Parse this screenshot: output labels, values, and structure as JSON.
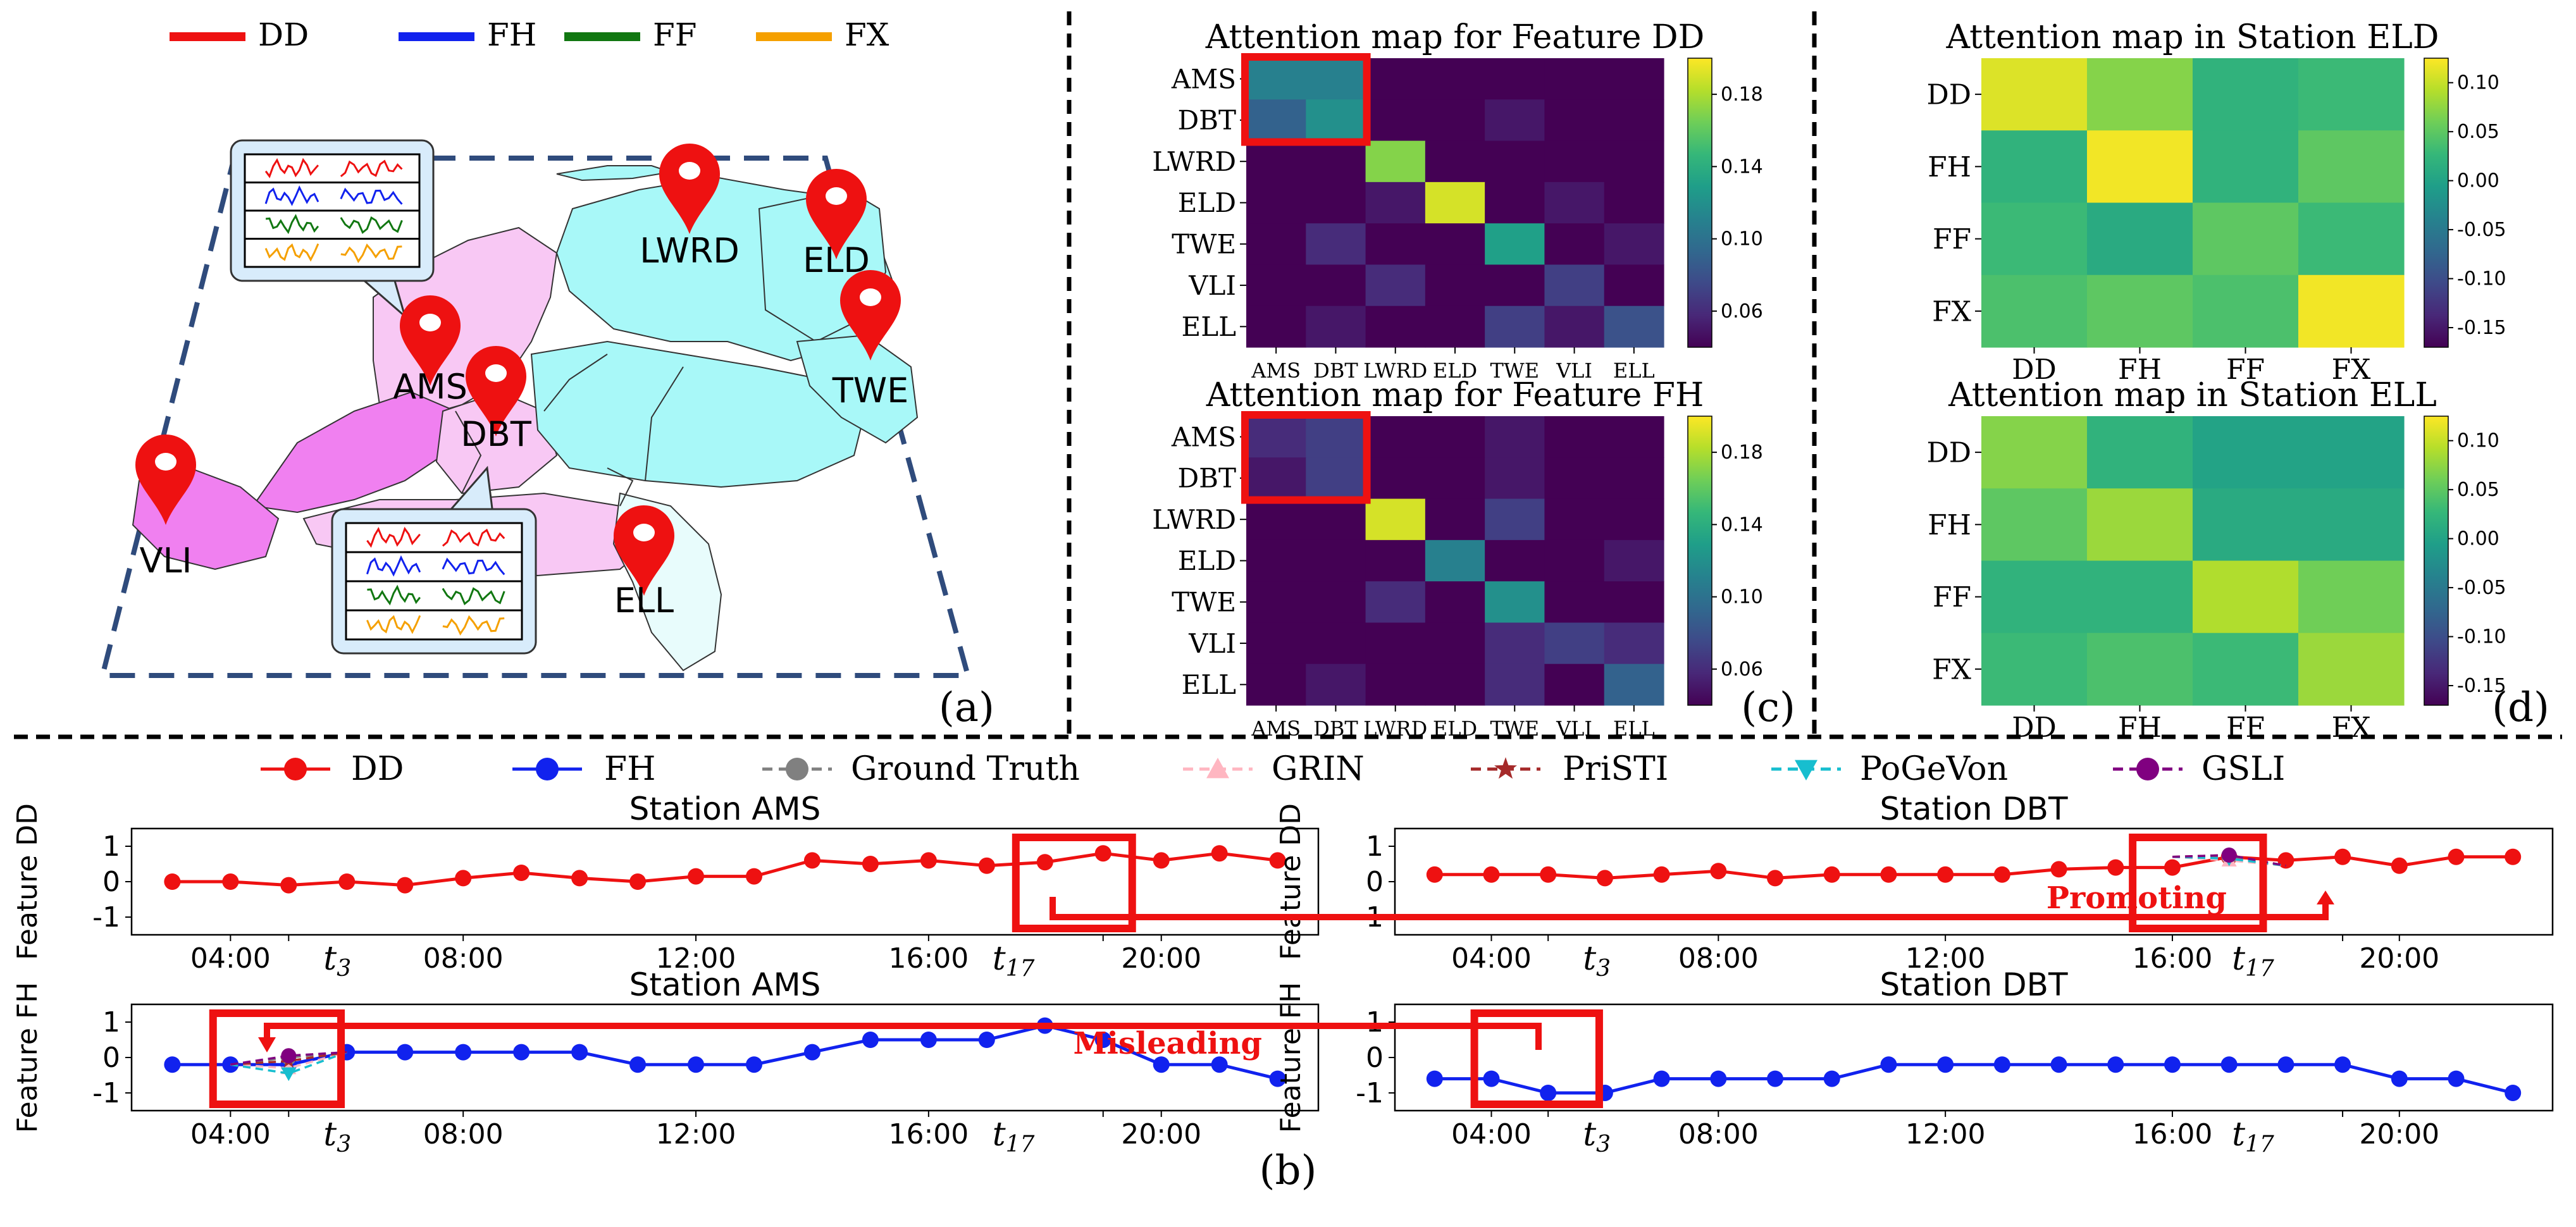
{
  "panel_labels": {
    "a": "(a)",
    "b": "(b)",
    "c": "(c)",
    "d": "(d)"
  },
  "features": [
    "DD",
    "FH",
    "FF",
    "FX"
  ],
  "feature_colors": {
    "DD": "#ee1111",
    "FH": "#1122ee",
    "FF": "#117711",
    "FX": "#f5a000"
  },
  "map": {
    "stations": [
      {
        "name": "AMS"
      },
      {
        "name": "DBT"
      },
      {
        "name": "LWRD"
      },
      {
        "name": "ELD"
      },
      {
        "name": "TWE"
      },
      {
        "name": "VLI"
      },
      {
        "name": "ELL"
      }
    ],
    "region_colors": {
      "west": "#f080f0",
      "light": "#f8c8f4",
      "north": "#a8f8f8",
      "east": "#e8fcfc"
    },
    "pin_color": "#ee1111"
  },
  "heat_c": {
    "stations": [
      "AMS",
      "DBT",
      "LWRD",
      "ELD",
      "TWE",
      "VLI",
      "ELL"
    ],
    "colorbar_ticks": [
      "0.06",
      "0.10",
      "0.14",
      "0.18"
    ],
    "maps": [
      {
        "title": "Attention map for Feature DD",
        "values": [
          [
            0.11,
            0.11,
            0.04,
            0.04,
            0.04,
            0.04,
            0.04
          ],
          [
            0.09,
            0.12,
            0.04,
            0.04,
            0.05,
            0.04,
            0.04
          ],
          [
            0.04,
            0.04,
            0.17,
            0.04,
            0.04,
            0.04,
            0.04
          ],
          [
            0.04,
            0.04,
            0.05,
            0.19,
            0.04,
            0.05,
            0.04
          ],
          [
            0.04,
            0.06,
            0.04,
            0.04,
            0.13,
            0.04,
            0.05
          ],
          [
            0.04,
            0.04,
            0.06,
            0.04,
            0.04,
            0.07,
            0.04
          ],
          [
            0.04,
            0.05,
            0.04,
            0.04,
            0.07,
            0.05,
            0.08
          ]
        ]
      },
      {
        "title": "Attention map for Feature FH",
        "values": [
          [
            0.06,
            0.07,
            0.04,
            0.04,
            0.05,
            0.04,
            0.04
          ],
          [
            0.05,
            0.07,
            0.04,
            0.04,
            0.05,
            0.04,
            0.04
          ],
          [
            0.04,
            0.04,
            0.19,
            0.04,
            0.07,
            0.04,
            0.04
          ],
          [
            0.04,
            0.04,
            0.04,
            0.11,
            0.04,
            0.04,
            0.05
          ],
          [
            0.04,
            0.04,
            0.06,
            0.04,
            0.12,
            0.04,
            0.04
          ],
          [
            0.04,
            0.04,
            0.04,
            0.04,
            0.06,
            0.07,
            0.06
          ],
          [
            0.04,
            0.05,
            0.04,
            0.04,
            0.06,
            0.04,
            0.09
          ]
        ]
      }
    ]
  },
  "heat_d": {
    "features": [
      "DD",
      "FH",
      "FF",
      "FX"
    ],
    "colorbar_ticks": [
      "0.10",
      "0.05",
      "0.00",
      "-0.05",
      "-0.10",
      "-0.15"
    ],
    "maps": [
      {
        "title": "Attention map in Station ELD",
        "values": [
          [
            0.11,
            0.07,
            0.02,
            0.03
          ],
          [
            0.02,
            0.12,
            0.02,
            0.05
          ],
          [
            0.03,
            0.01,
            0.05,
            0.03
          ],
          [
            0.04,
            0.05,
            0.04,
            0.12
          ]
        ]
      },
      {
        "title": "Attention map in Station ELL",
        "values": [
          [
            0.07,
            0.02,
            0.0,
            0.0
          ],
          [
            0.05,
            0.08,
            0.01,
            0.01
          ],
          [
            0.02,
            0.02,
            0.09,
            0.06
          ],
          [
            0.03,
            0.04,
            0.03,
            0.08
          ]
        ]
      }
    ]
  },
  "ts_legend": {
    "DD": "DD",
    "FH": "FH",
    "Ground Truth": "Ground Truth",
    "GRIN": "GRIN",
    "PriSTI": "PriSTI",
    "PoGeVon": "PoGeVon",
    "GSLI": "GSLI"
  },
  "ts_colors": {
    "DD": "#ee1111",
    "FH": "#1122ee",
    "Ground Truth": "#808080",
    "GRIN": "#ffb6c1",
    "PriSTI": "#a52a2a",
    "PoGeVon": "#17becf",
    "GSLI": "#800080"
  },
  "annotations": {
    "promoting": "Promoting",
    "misleading": "Misleading"
  },
  "chart_data": [
    {
      "type": "line",
      "title": "Station AMS",
      "ylabel": "Feature DD",
      "x_hours": [
        3,
        4,
        5,
        6,
        7,
        8,
        9,
        10,
        11,
        12,
        13,
        14,
        15,
        16,
        17,
        18,
        19,
        20,
        21,
        22
      ],
      "ylim": [
        -1.5,
        1.5
      ],
      "yticks": [
        "1",
        "0",
        "-1"
      ],
      "xtick_labels": [
        "04:00",
        "08:00",
        "12:00",
        "16:00",
        "20:00"
      ],
      "t_labels": [
        "t",
        "t"
      ],
      "t_subs": [
        "3",
        "17"
      ],
      "series": [
        {
          "name": "DD",
          "values": [
            0.0,
            0.0,
            -0.1,
            0.0,
            -0.1,
            0.1,
            0.25,
            0.1,
            0.0,
            0.15,
            0.15,
            0.6,
            0.5,
            0.6,
            0.45,
            0.55,
            0.8,
            0.6,
            0.8,
            0.6
          ]
        }
      ],
      "highlight_hours": [
        17.5,
        19.5
      ]
    },
    {
      "type": "line",
      "title": "Station DBT",
      "ylabel": "Feature DD",
      "x_hours": [
        3,
        4,
        5,
        6,
        7,
        8,
        9,
        10,
        11,
        12,
        13,
        14,
        15,
        16,
        17,
        18,
        19,
        20,
        21,
        22
      ],
      "ylim": [
        -1.5,
        1.5
      ],
      "yticks": [
        "1",
        "0",
        "-1"
      ],
      "xtick_labels": [
        "04:00",
        "08:00",
        "12:00",
        "16:00",
        "20:00"
      ],
      "t_labels": [
        "t",
        "t"
      ],
      "t_subs": [
        "3",
        "17"
      ],
      "series": [
        {
          "name": "DD",
          "values": [
            0.2,
            0.2,
            0.2,
            0.1,
            0.2,
            0.3,
            0.1,
            0.2,
            0.2,
            0.2,
            0.2,
            0.35,
            0.4,
            0.4,
            0.7,
            0.6,
            0.7,
            0.45,
            0.7,
            0.7
          ]
        }
      ],
      "imputations": [
        {
          "name": "Ground Truth",
          "hours": [
            16,
            17,
            18
          ],
          "values": [
            0.7,
            0.7,
            0.45
          ]
        },
        {
          "name": "GRIN",
          "hours": [
            16,
            17,
            18
          ],
          "values": [
            0.7,
            0.6,
            0.45
          ]
        },
        {
          "name": "PriSTI",
          "hours": [
            16,
            17,
            18
          ],
          "values": [
            0.7,
            0.75,
            0.45
          ]
        },
        {
          "name": "PoGeVon",
          "hours": [
            16,
            17,
            18
          ],
          "values": [
            0.7,
            0.65,
            0.45
          ]
        },
        {
          "name": "GSLI",
          "hours": [
            16,
            17,
            18
          ],
          "values": [
            0.7,
            0.75,
            0.45
          ]
        }
      ],
      "highlight_hours": [
        15.3,
        17.6
      ]
    },
    {
      "type": "line",
      "title": "Station AMS",
      "ylabel": "Feature FH",
      "x_hours": [
        3,
        4,
        5,
        6,
        7,
        8,
        9,
        10,
        11,
        12,
        13,
        14,
        15,
        16,
        17,
        18,
        19,
        20,
        21,
        22
      ],
      "ylim": [
        -1.5,
        1.5
      ],
      "yticks": [
        "1",
        "0",
        "-1"
      ],
      "xtick_labels": [
        "04:00",
        "08:00",
        "12:00",
        "16:00",
        "20:00"
      ],
      "t_labels": [
        "t",
        "t"
      ],
      "t_subs": [
        "3",
        "17"
      ],
      "series": [
        {
          "name": "FH",
          "values": [
            -0.2,
            -0.2,
            -0.2,
            0.15,
            0.15,
            0.15,
            0.15,
            0.15,
            -0.2,
            -0.2,
            -0.2,
            0.15,
            0.5,
            0.5,
            0.5,
            0.9,
            0.5,
            -0.2,
            -0.2,
            -0.6
          ]
        }
      ],
      "imputations": [
        {
          "name": "Ground Truth",
          "hours": [
            4,
            5,
            6
          ],
          "values": [
            -0.2,
            0.0,
            0.15
          ]
        },
        {
          "name": "GRIN",
          "hours": [
            4,
            5,
            6
          ],
          "values": [
            -0.2,
            -0.3,
            0.15
          ]
        },
        {
          "name": "PriSTI",
          "hours": [
            4,
            5,
            6
          ],
          "values": [
            -0.2,
            -0.1,
            0.15
          ]
        },
        {
          "name": "PoGeVon",
          "hours": [
            4,
            5,
            6
          ],
          "values": [
            -0.2,
            -0.45,
            0.15
          ]
        },
        {
          "name": "GSLI",
          "hours": [
            4,
            5,
            6
          ],
          "values": [
            -0.2,
            0.05,
            0.15
          ]
        }
      ],
      "highlight_hours": [
        3.7,
        5.9
      ]
    },
    {
      "type": "line",
      "title": "Station DBT",
      "ylabel": "Feature FH",
      "x_hours": [
        3,
        4,
        5,
        6,
        7,
        8,
        9,
        10,
        11,
        12,
        13,
        14,
        15,
        16,
        17,
        18,
        19,
        20,
        21,
        22
      ],
      "ylim": [
        -1.5,
        1.5
      ],
      "yticks": [
        "1",
        "0",
        "-1"
      ],
      "xtick_labels": [
        "04:00",
        "08:00",
        "12:00",
        "16:00",
        "20:00"
      ],
      "t_labels": [
        "t",
        "t"
      ],
      "t_subs": [
        "3",
        "17"
      ],
      "series": [
        {
          "name": "FH",
          "values": [
            -0.6,
            -0.6,
            -1.0,
            -1.0,
            -0.6,
            -0.6,
            -0.6,
            -0.6,
            -0.2,
            -0.2,
            -0.2,
            -0.2,
            -0.2,
            -0.2,
            -0.2,
            -0.2,
            -0.2,
            -0.6,
            -0.6,
            -1.0
          ]
        }
      ],
      "highlight_hours": [
        3.7,
        5.9
      ]
    }
  ]
}
